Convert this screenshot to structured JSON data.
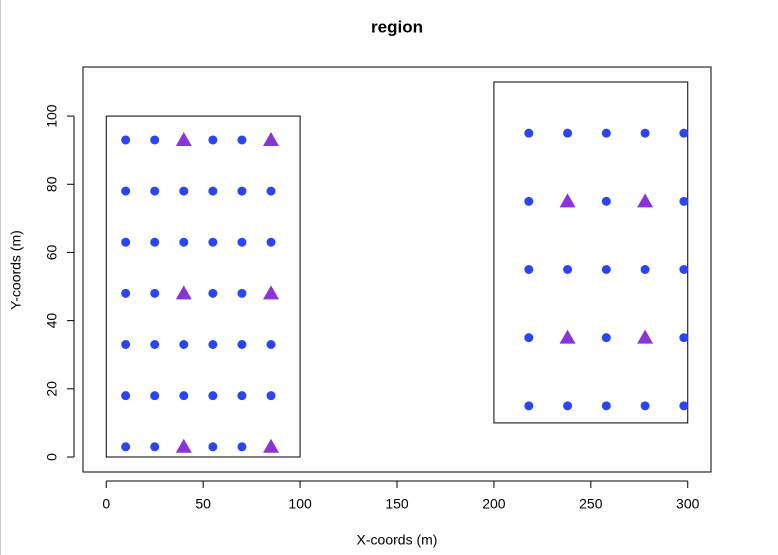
{
  "chart_data": {
    "type": "scatter",
    "title": "region",
    "x_label": "X-coords (m)",
    "y_label": "Y-coords (m)",
    "xlim": [
      -12,
      312
    ],
    "ylim": [
      -4.4,
      114.4
    ],
    "xticks": [
      0,
      50,
      100,
      150,
      200,
      250,
      300
    ],
    "yticks": [
      0,
      20,
      40,
      60,
      80,
      100
    ],
    "regions": [
      {
        "x": [
          0,
          100
        ],
        "y": [
          0,
          100
        ]
      },
      {
        "x": [
          200,
          300
        ],
        "y": [
          10,
          110
        ]
      }
    ],
    "series": [
      {
        "color": "#2a45f5",
        "marker": "circle",
        "x": [
          10,
          25,
          55,
          70,
          10,
          25,
          40,
          55,
          70,
          85,
          10,
          25,
          40,
          55,
          70,
          85,
          10,
          25,
          55,
          70,
          10,
          25,
          40,
          55,
          70,
          85,
          10,
          25,
          40,
          55,
          70,
          85,
          10,
          25,
          55,
          70,
          218,
          238,
          258,
          278,
          298,
          218,
          258,
          298,
          218,
          238,
          258,
          278,
          298,
          218,
          258,
          298,
          218,
          238,
          258,
          278,
          298
        ],
        "values": [
          93,
          93,
          93,
          93,
          78,
          78,
          78,
          78,
          78,
          78,
          63,
          63,
          63,
          63,
          63,
          63,
          48,
          48,
          48,
          48,
          33,
          33,
          33,
          33,
          33,
          33,
          18,
          18,
          18,
          18,
          18,
          18,
          3,
          3,
          3,
          3,
          95,
          95,
          95,
          95,
          95,
          75,
          75,
          75,
          55,
          55,
          55,
          55,
          55,
          35,
          35,
          35,
          15,
          15,
          15,
          15,
          15
        ]
      },
      {
        "color": "#8a35d6",
        "marker": "triangle",
        "x": [
          40,
          85,
          40,
          85,
          40,
          85,
          238,
          278,
          238,
          278
        ],
        "values": [
          93,
          93,
          48,
          48,
          3,
          3,
          75,
          75,
          35,
          35
        ]
      }
    ]
  }
}
